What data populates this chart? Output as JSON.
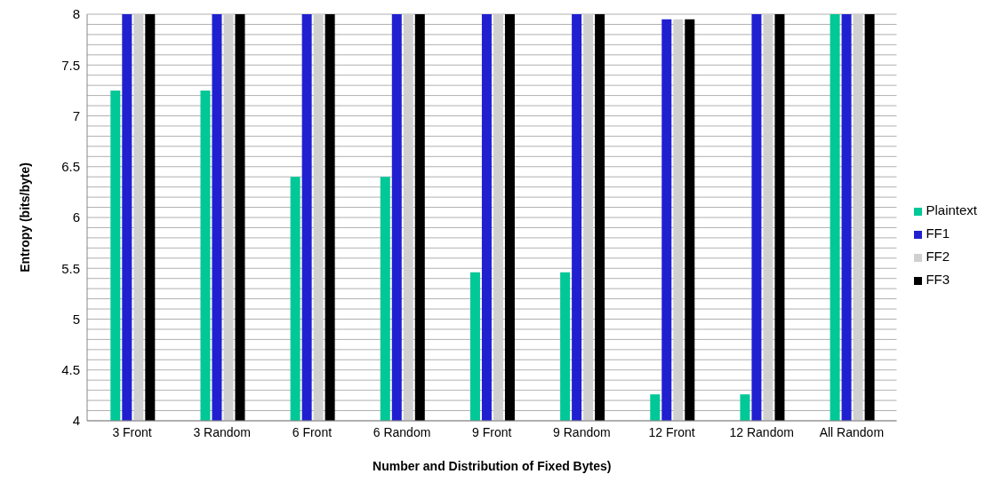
{
  "chart_data": {
    "type": "bar",
    "xlabel": "Number and Distribution of Fixed Bytes)",
    "ylabel": "Entropy (bits/byte)",
    "categories": [
      "3 Front",
      "3 Random",
      "6 Front",
      "6 Random",
      "9 Front",
      "9 Random",
      "12 Front",
      "12 Random",
      "All Random"
    ],
    "series": [
      {
        "name": "Plaintext",
        "color": "#00c896",
        "values": [
          7.25,
          7.25,
          6.4,
          6.4,
          5.46,
          5.46,
          4.26,
          4.26,
          8
        ]
      },
      {
        "name": "FF1",
        "color": "#2020d0",
        "values": [
          8,
          8,
          8,
          8,
          8,
          8,
          7.95,
          8,
          8
        ]
      },
      {
        "name": "FF2",
        "color": "#d0d0d0",
        "values": [
          8,
          8,
          8,
          8,
          8,
          8,
          7.95,
          8,
          8
        ]
      },
      {
        "name": "FF3",
        "color": "#000000",
        "values": [
          8,
          8,
          8,
          8,
          8,
          8,
          7.95,
          8,
          8
        ]
      }
    ],
    "ylim": [
      4,
      8
    ],
    "yticks": [
      4,
      {
        "value": 4.1,
        "label": null
      },
      {
        "value": 4.2,
        "label": null
      },
      {
        "value": 4.3,
        "label": null
      },
      {
        "value": 4.4,
        "label": null
      },
      4.5,
      {
        "value": 4.6,
        "label": null
      },
      {
        "value": 4.7,
        "label": null
      },
      {
        "value": 4.8,
        "label": null
      },
      {
        "value": 4.9,
        "label": null
      },
      5,
      {
        "value": 5.1,
        "label": null
      },
      {
        "value": 5.2,
        "label": null
      },
      {
        "value": 5.3,
        "label": null
      },
      {
        "value": 5.4,
        "label": null
      },
      5.5,
      {
        "value": 5.6,
        "label": null
      },
      {
        "value": 5.7,
        "label": null
      },
      {
        "value": 5.8,
        "label": null
      },
      {
        "value": 5.9,
        "label": null
      },
      6,
      {
        "value": 6.1,
        "label": null
      },
      {
        "value": 6.2,
        "label": null
      },
      {
        "value": 6.3,
        "label": null
      },
      {
        "value": 6.4,
        "label": null
      },
      6.5,
      {
        "value": 6.6,
        "label": null
      },
      {
        "value": 6.7,
        "label": null
      },
      {
        "value": 6.8,
        "label": null
      },
      {
        "value": 6.9,
        "label": null
      },
      7,
      {
        "value": 7.1,
        "label": null
      },
      {
        "value": 7.2,
        "label": null
      },
      {
        "value": 7.3,
        "label": null
      },
      {
        "value": 7.4,
        "label": null
      },
      7.5,
      {
        "value": 7.6,
        "label": null
      },
      {
        "value": 7.7,
        "label": null
      },
      {
        "value": 7.8,
        "label": null
      },
      {
        "value": 7.9,
        "label": null
      },
      8
    ],
    "grid": "y",
    "legend": "right"
  }
}
